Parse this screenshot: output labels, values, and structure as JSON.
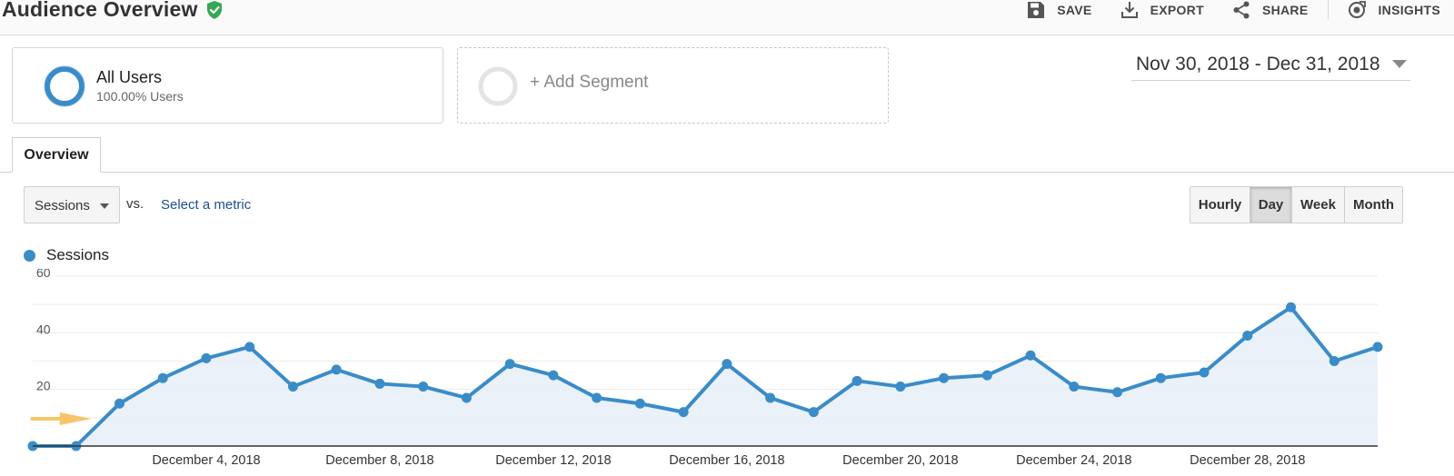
{
  "header": {
    "title": "Audience Overview",
    "actions": [
      {
        "label": "SAVE",
        "icon": "save-icon"
      },
      {
        "label": "EXPORT",
        "icon": "export-icon"
      },
      {
        "label": "SHARE",
        "icon": "share-icon"
      },
      {
        "label": "INSIGHTS",
        "icon": "insights-icon"
      }
    ]
  },
  "segments": {
    "all_users": {
      "name": "All Users",
      "subtitle": "100.00% Users"
    },
    "add_segment": {
      "label": "+ Add Segment"
    }
  },
  "date_range": "Nov 30, 2018 - Dec 31, 2018",
  "tabs": [
    {
      "label": "Overview",
      "active": true
    }
  ],
  "metric": {
    "selected": "Sessions",
    "vs_label": "vs.",
    "select_metric": "Select a metric"
  },
  "granularity": [
    {
      "label": "Hourly",
      "active": false
    },
    {
      "label": "Day",
      "active": true
    },
    {
      "label": "Week",
      "active": false
    },
    {
      "label": "Month",
      "active": false
    }
  ],
  "colors": {
    "series": "#3a8cc8",
    "area": "#e6eef8",
    "verified_badge": "#34a853",
    "annotation_arrow": "#f6c56a"
  },
  "chart_data": {
    "type": "area",
    "title": "",
    "xlabel": "",
    "ylabel": "",
    "x": [
      "2018-11-30",
      "2018-12-01",
      "2018-12-02",
      "2018-12-03",
      "2018-12-04",
      "2018-12-05",
      "2018-12-06",
      "2018-12-07",
      "2018-12-08",
      "2018-12-09",
      "2018-12-10",
      "2018-12-11",
      "2018-12-12",
      "2018-12-13",
      "2018-12-14",
      "2018-12-15",
      "2018-12-16",
      "2018-12-17",
      "2018-12-18",
      "2018-12-19",
      "2018-12-20",
      "2018-12-21",
      "2018-12-22",
      "2018-12-23",
      "2018-12-24",
      "2018-12-25",
      "2018-12-26",
      "2018-12-27",
      "2018-12-28",
      "2018-12-29",
      "2018-12-30",
      "2018-12-31"
    ],
    "series": [
      {
        "name": "Sessions",
        "values": [
          0,
          0,
          15,
          24,
          31,
          35,
          21,
          27,
          22,
          21,
          17,
          29,
          25,
          17,
          15,
          12,
          29,
          17,
          12,
          23,
          21,
          24,
          25,
          32,
          21,
          19,
          24,
          26,
          39,
          49,
          30,
          35
        ]
      }
    ],
    "ylim": [
      0,
      60
    ],
    "y_ticks": [
      20,
      40,
      60
    ],
    "x_tick_labels": [
      {
        "date": "2018-12-04",
        "label": "December 4, 2018"
      },
      {
        "date": "2018-12-08",
        "label": "December 8, 2018"
      },
      {
        "date": "2018-12-12",
        "label": "December 12, 2018"
      },
      {
        "date": "2018-12-16",
        "label": "December 16, 2018"
      },
      {
        "date": "2018-12-20",
        "label": "December 20, 2018"
      },
      {
        "date": "2018-12-24",
        "label": "December 24, 2018"
      },
      {
        "date": "2018-12-28",
        "label": "December 28, 2018"
      }
    ],
    "grid": true,
    "annotation": {
      "type": "arrow",
      "date": "2018-12-01"
    }
  }
}
